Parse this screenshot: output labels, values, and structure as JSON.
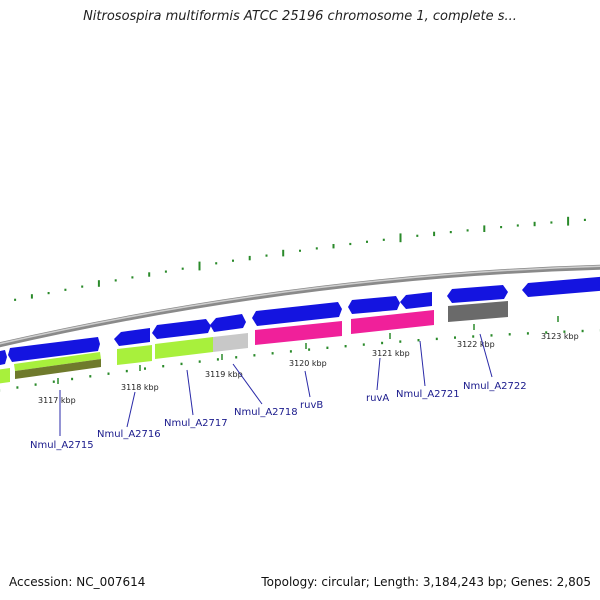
{
  "header": {
    "title": "Nitrosospira multiformis ATCC 25196 chromosome 1, complete s..."
  },
  "footer": {
    "accession": "Accession: NC_007614",
    "summary": "Topology: circular; Length: 3,184,243 bp; Genes: 2,805"
  },
  "colors": {
    "backbone": "#8a8a8a",
    "forward_gene": "#1414e0",
    "reverse_lime": "#a8f03c",
    "reverse_lime_dark": "#6f7a2c",
    "reverse_pink": "#f0209a",
    "reverse_gray": "#c8c8c8",
    "reverse_darkgray": "#6a6a6a",
    "gc_skew": "#2a8a2a",
    "label_line": "#2a2aa8"
  },
  "scale": {
    "unit": "kbp",
    "ticks": [
      {
        "label": "3117 kbp"
      },
      {
        "label": "3118 kbp"
      },
      {
        "label": "3119 kbp"
      },
      {
        "label": "3120 kbp"
      },
      {
        "label": "3121 kbp"
      },
      {
        "label": "3122 kbp"
      },
      {
        "label": "3123 kbp"
      }
    ]
  },
  "gene_labels": [
    {
      "name": "Nmul_A2715"
    },
    {
      "name": "Nmul_A2716"
    },
    {
      "name": "Nmul_A2717"
    },
    {
      "name": "Nmul_A2718"
    },
    {
      "name": "ruvB"
    },
    {
      "name": "ruvA"
    },
    {
      "name": "Nmul_A2721"
    },
    {
      "name": "Nmul_A2722"
    }
  ]
}
